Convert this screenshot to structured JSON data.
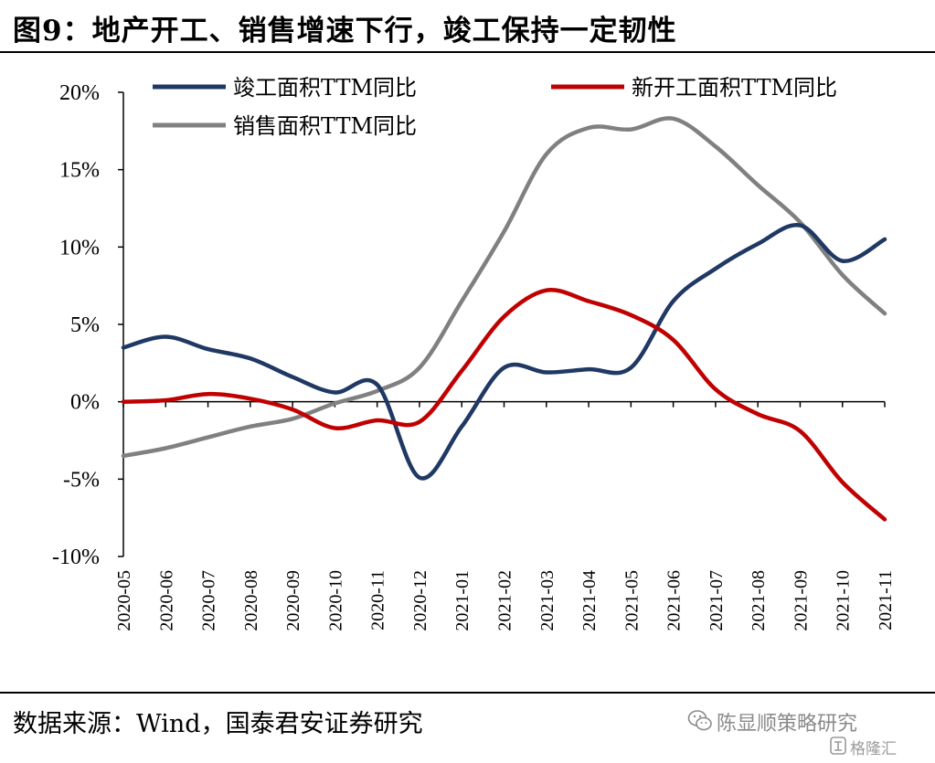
{
  "title": "图9：地产开工、销售增速下行，竣工保持一定韧性",
  "source": "数据来源：Wind，国泰君安证券研究",
  "watermark": {
    "text": "陈显顺策略研究",
    "icon": "wechat-icon",
    "badge_text": "格隆汇",
    "badge_icon": "gelonghui-logo-icon"
  },
  "chart_data": {
    "type": "line",
    "categories": [
      "2020-05",
      "2020-06",
      "2020-07",
      "2020-08",
      "2020-09",
      "2020-10",
      "2020-11",
      "2020-12",
      "2021-01",
      "2021-02",
      "2021-03",
      "2021-04",
      "2021-05",
      "2021-06",
      "2021-07",
      "2021-08",
      "2021-09",
      "2021-10",
      "2021-11"
    ],
    "x": [
      0,
      0.5,
      1,
      1.5,
      2,
      2.5,
      3,
      3.5,
      4,
      4.5,
      5,
      5.5,
      6,
      6.3,
      6.7,
      7,
      7.5,
      8,
      8.4,
      8.8,
      9,
      9.5,
      10,
      10.4,
      10.8,
      11,
      11.5,
      12,
      12.3,
      12.7,
      13,
      13.5,
      14,
      14.5,
      15,
      15.5,
      16,
      16.4,
      16.8,
      17,
      17.5,
      18
    ],
    "ylim": [
      -10,
      20
    ],
    "yticks": [
      -10,
      -5,
      0,
      5,
      10,
      15,
      20
    ],
    "ytick_labels": [
      "-10%",
      "-5%",
      "0%",
      "5%",
      "10%",
      "15%",
      "20%"
    ],
    "legend_position": "top",
    "grid": false,
    "series": [
      {
        "name": "竣工面积TTM同比",
        "color": "#1F3864",
        "values": [
          3.5,
          4.2,
          3.4,
          2.8,
          1.6,
          0.6,
          1.1,
          -4.9,
          -1.6,
          2.2,
          1.9,
          2.1,
          2.2,
          6.5,
          8.6,
          10.2,
          11.4,
          9.1,
          10.5
        ],
        "x_index": [
          0,
          1,
          2,
          3,
          4,
          5,
          6,
          7,
          8,
          9,
          10,
          11,
          12,
          13,
          14,
          15,
          16,
          17,
          18
        ]
      },
      {
        "name": "新开工面积TTM同比",
        "color": "#C00000",
        "values": [
          0.0,
          0.1,
          0.5,
          0.2,
          -0.5,
          -1.7,
          -1.2,
          -1.3,
          2.0,
          5.5,
          7.2,
          6.5,
          5.6,
          4.0,
          0.8,
          -0.8,
          -1.9,
          -5.2,
          -7.6
        ],
        "x_index": [
          0,
          1,
          2,
          3,
          4,
          5,
          6,
          7,
          8,
          9,
          10,
          11,
          12,
          13,
          14,
          15,
          16,
          17,
          18
        ]
      },
      {
        "name": "销售面积TTM同比",
        "color": "#808080",
        "values": [
          -3.5,
          -3.0,
          -2.3,
          -1.6,
          -1.1,
          -0.1,
          0.7,
          2.2,
          6.5,
          11.0,
          16.0,
          17.7,
          17.6,
          18.3,
          16.5,
          14.0,
          11.6,
          8.2,
          5.7
        ],
        "x_index": [
          0,
          1,
          2,
          3,
          4,
          5,
          6,
          7,
          8,
          9,
          10,
          11,
          12,
          13,
          14,
          15,
          16,
          17,
          18
        ]
      }
    ]
  }
}
